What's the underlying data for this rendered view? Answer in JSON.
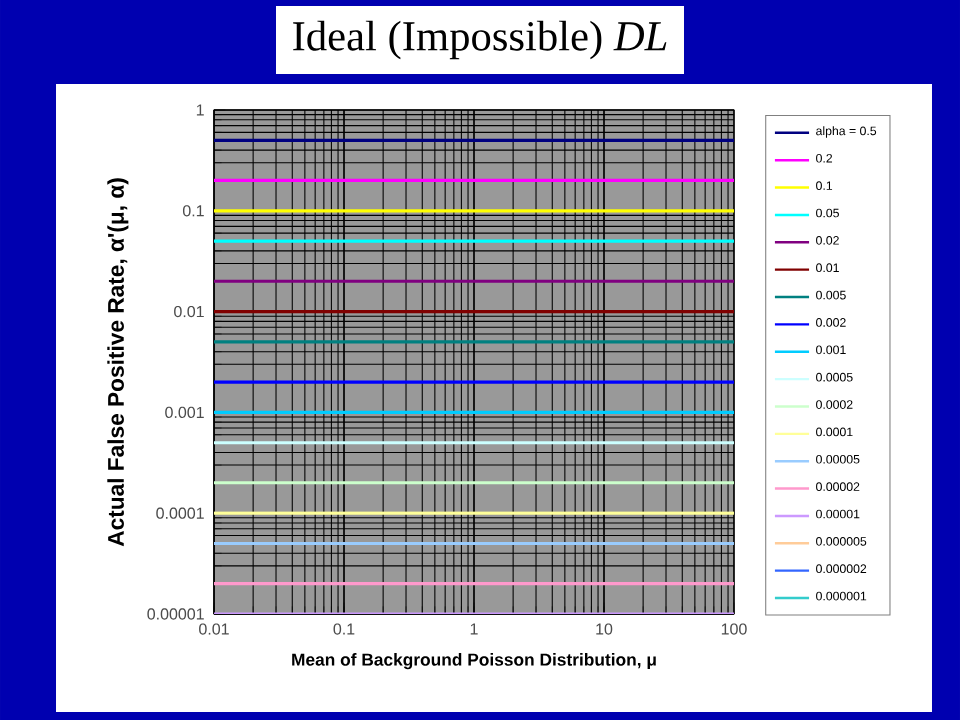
{
  "chart_data": {
    "type": "line",
    "title": "Ideal (Impossible) *DL*",
    "xlabel": "Mean of Background Poisson Distribution, μ",
    "ylabel": "Actual False Positive Rate, α'(μ, α)",
    "log": "xy",
    "xlim": [
      0.01,
      100
    ],
    "ylim": [
      1e-05,
      1
    ],
    "xticks": [
      0.01,
      0.1,
      1,
      10,
      100
    ],
    "yticks": [
      {
        "value": 1e-05,
        "label": "0.00001"
      },
      0.0001,
      0.001,
      0.01,
      0.1,
      1
    ],
    "x": [
      0.01,
      100
    ],
    "grid": true,
    "legend": "right",
    "marker": "none",
    "line_style": "solid",
    "series": [
      {
        "name": "alpha = 0.5",
        "color": "#000080",
        "values": [
          0.5,
          0.5
        ]
      },
      {
        "name": "0.2",
        "color": "#ff00ff",
        "values": [
          0.2,
          0.2
        ]
      },
      {
        "name": "0.1",
        "color": "#ffff00",
        "values": [
          0.1,
          0.1
        ]
      },
      {
        "name": "0.05",
        "color": "#00ffff",
        "values": [
          0.05,
          0.05
        ]
      },
      {
        "name": "0.02",
        "color": "#800080",
        "values": [
          0.02,
          0.02
        ]
      },
      {
        "name": "0.01",
        "color": "#800000",
        "values": [
          0.01,
          0.01
        ]
      },
      {
        "name": "0.005",
        "color": "#008080",
        "values": [
          0.005,
          0.005
        ]
      },
      {
        "name": "0.002",
        "color": "#0000ff",
        "values": [
          0.002,
          0.002
        ]
      },
      {
        "name": "0.001",
        "color": "#00ccff",
        "values": [
          0.001,
          0.001
        ]
      },
      {
        "name": "0.0005",
        "color": "#ccffff",
        "values": [
          0.0005,
          0.0005
        ]
      },
      {
        "name": "0.0002",
        "color": "#ccffcc",
        "values": [
          0.0002,
          0.0002
        ]
      },
      {
        "name": "0.0001",
        "color": "#ffff99",
        "values": [
          0.0001,
          0.0001
        ]
      },
      {
        "name": "0.00005",
        "color": "#99ccff",
        "values": [
          5e-05,
          5e-05
        ]
      },
      {
        "name": "0.00002",
        "color": "#ff99cc",
        "values": [
          2e-05,
          2e-05
        ]
      },
      {
        "name": "0.00001",
        "color": "#cc99ff",
        "values": [
          1e-05,
          1e-05
        ]
      },
      {
        "name": "0.000005",
        "color": "#ffcc99",
        "values": [
          null,
          null
        ]
      },
      {
        "name": "0.000002",
        "color": "#3366ff",
        "values": [
          null,
          null
        ]
      },
      {
        "name": "0.000001",
        "color": "#33cccc",
        "values": [
          null,
          null
        ]
      }
    ]
  }
}
